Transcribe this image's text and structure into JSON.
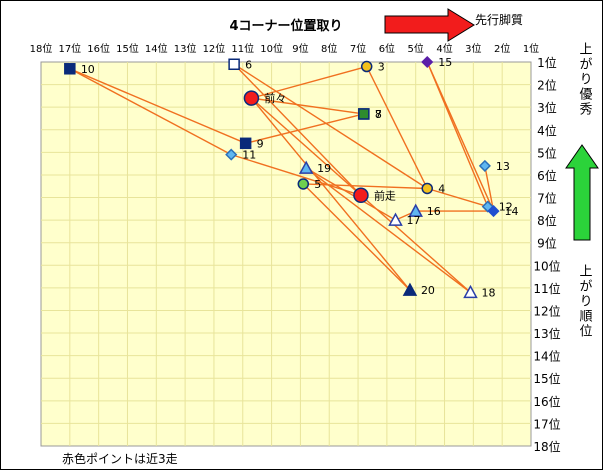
{
  "chart_data": {
    "type": "scatter",
    "title": "4コーナー位置取り",
    "left_arrow_label": "先行脚質",
    "right_top_label": "上がり優秀",
    "right_bottom_label": "上がり順位",
    "footnote": "赤色ポイントは近3走",
    "x_ticks": [
      "18位",
      "17位",
      "16位",
      "15位",
      "14位",
      "13位",
      "12位",
      "11位",
      "10位",
      "9位",
      "8位",
      "7位",
      "6位",
      "5位",
      "4位",
      "3位",
      "2位",
      "1位"
    ],
    "y_ticks": [
      "1位",
      "2位",
      "3位",
      "4位",
      "5位",
      "6位",
      "7位",
      "8位",
      "9位",
      "10位",
      "11位",
      "12位",
      "13位",
      "14位",
      "15位",
      "16位",
      "17位",
      "18位"
    ],
    "xlim": [
      18,
      1
    ],
    "ylim": [
      1,
      18
    ],
    "grid": true,
    "colors": {
      "plot_bg": "#ffffcc",
      "grid": "#e8e49a",
      "line": "#f07020",
      "navy": "#0a2a7a",
      "light_blue": "#5fb6f0",
      "purple": "#5b1fa8",
      "gold": "#f3c11d",
      "red": "#f21c1c",
      "green": "#2e8b2e",
      "arrow_red": "#f21c1c",
      "arrow_green": "#2bd33a"
    },
    "points": [
      {
        "label": "10",
        "x": 17.0,
        "y": 1.3,
        "shape": "square",
        "fill": "#0a2a7a",
        "stroke": "#0a2a7a"
      },
      {
        "label": "6",
        "x": 11.3,
        "y": 1.1,
        "shape": "square",
        "fill": "#ffffff",
        "stroke": "#0a2a7a"
      },
      {
        "label": "3",
        "x": 6.7,
        "y": 1.2,
        "shape": "circle",
        "fill": "#f3c11d",
        "stroke": "#0a2a7a"
      },
      {
        "label": "15",
        "x": 4.6,
        "y": 1.0,
        "shape": "diamond",
        "fill": "#5b1fa8",
        "stroke": "#5b1fa8"
      },
      {
        "label": "前々",
        "x": 10.7,
        "y": 2.6,
        "shape": "circle_big",
        "fill": "#f21c1c",
        "stroke": "#0a2a7a"
      },
      {
        "label": "7",
        "x": 6.8,
        "y": 3.3,
        "shape": "square",
        "fill": "#2e8b2e",
        "stroke": "#0a2a7a"
      },
      {
        "label": "8",
        "x": 6.8,
        "y": 3.3,
        "shape": "square",
        "fill": "#2e8b2e",
        "stroke": "#0a2a7a"
      },
      {
        "label": "9",
        "x": 10.9,
        "y": 4.6,
        "shape": "square",
        "fill": "#0a2a7a",
        "stroke": "#0a2a7a"
      },
      {
        "label": "11",
        "x": 11.4,
        "y": 5.1,
        "shape": "diamond",
        "fill": "#5fb6f0",
        "stroke": "#2a6fb8"
      },
      {
        "label": "19",
        "x": 8.8,
        "y": 5.7,
        "shape": "triangle",
        "fill": "#5fb6f0",
        "stroke": "#2a3fa8"
      },
      {
        "label": "13",
        "x": 2.6,
        "y": 5.6,
        "shape": "diamond",
        "fill": "#5fb6f0",
        "stroke": "#2a6fb8"
      },
      {
        "label": "5",
        "x": 8.9,
        "y": 6.4,
        "shape": "circle",
        "fill": "#6fcf4f",
        "stroke": "#0a2a7a"
      },
      {
        "label": "4",
        "x": 4.6,
        "y": 6.6,
        "shape": "circle",
        "fill": "#f3c11d",
        "stroke": "#0a2a7a"
      },
      {
        "label": "前走",
        "x": 6.9,
        "y": 6.9,
        "shape": "circle_big",
        "fill": "#f21c1c",
        "stroke": "#0a2a7a"
      },
      {
        "label": "12",
        "x": 2.5,
        "y": 7.4,
        "shape": "diamond",
        "fill": "#5fb6f0",
        "stroke": "#2a6fb8"
      },
      {
        "label": "14",
        "x": 2.3,
        "y": 7.6,
        "shape": "diamond",
        "fill": "#1f4fd0",
        "stroke": "#1f4fd0"
      },
      {
        "label": "16",
        "x": 5.0,
        "y": 7.6,
        "shape": "triangle",
        "fill": "#5fb6f0",
        "stroke": "#2a3fa8"
      },
      {
        "label": "17",
        "x": 5.7,
        "y": 8.0,
        "shape": "triangle",
        "fill": "#ffffff",
        "stroke": "#2a3fa8"
      },
      {
        "label": "20",
        "x": 5.2,
        "y": 11.1,
        "shape": "triangle",
        "fill": "#0a2a7a",
        "stroke": "#0a2a7a"
      },
      {
        "label": "18",
        "x": 3.1,
        "y": 11.2,
        "shape": "triangle",
        "fill": "#ffffff",
        "stroke": "#2a3fa8"
      }
    ],
    "connections": [
      [
        "10",
        "9"
      ],
      [
        "9",
        "7"
      ],
      [
        "7",
        "前々"
      ],
      [
        "前々",
        "3"
      ],
      [
        "3",
        "4"
      ],
      [
        "4",
        "6"
      ],
      [
        "6",
        "前走"
      ],
      [
        "前走",
        "11"
      ],
      [
        "11",
        "10"
      ],
      [
        "前々",
        "20"
      ],
      [
        "20",
        "5"
      ],
      [
        "5",
        "4"
      ],
      [
        "4",
        "12"
      ],
      [
        "12",
        "15"
      ],
      [
        "15",
        "14"
      ],
      [
        "14",
        "13"
      ],
      [
        "14",
        "16"
      ],
      [
        "16",
        "17"
      ],
      [
        "17",
        "19"
      ],
      [
        "19",
        "18"
      ],
      [
        "18",
        "前々"
      ]
    ]
  }
}
